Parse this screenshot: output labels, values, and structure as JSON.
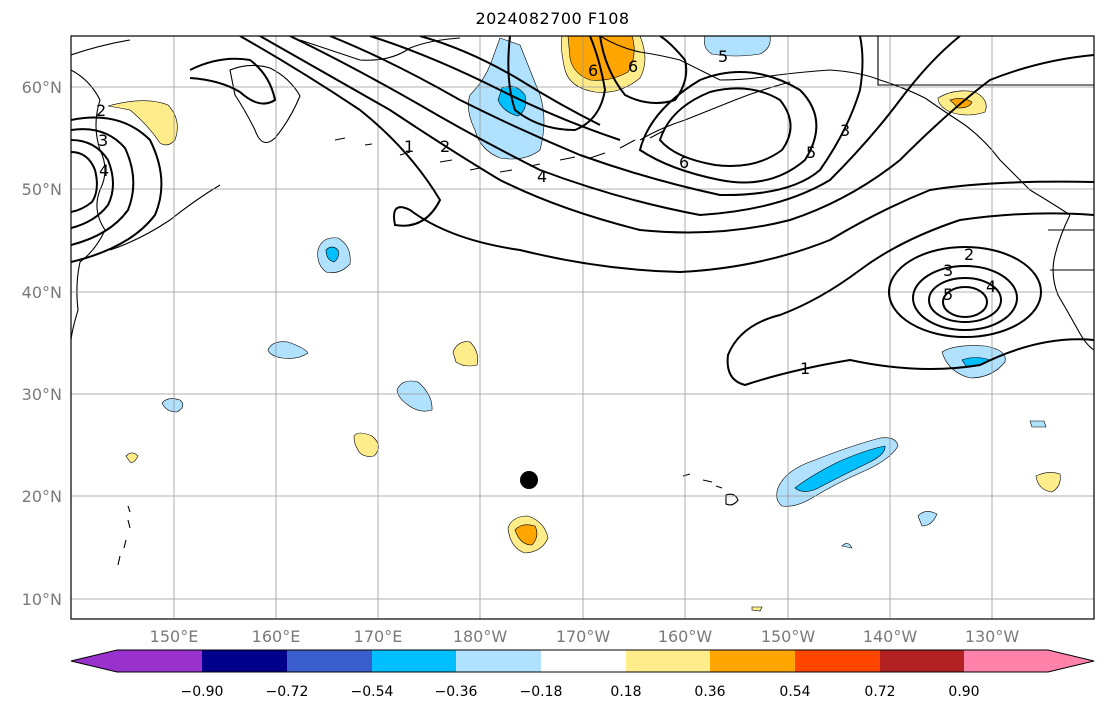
{
  "title": "2024082700 F108",
  "lat_labels": [
    "60°N",
    "50°N",
    "40°N",
    "30°N",
    "20°N",
    "10°N"
  ],
  "lon_labels": [
    "150°E",
    "160°E",
    "170°E",
    "180°W",
    "170°W",
    "160°W",
    "150°W",
    "140°W",
    "130°W"
  ],
  "colorbar": {
    "ticks": [
      "−0.90",
      "−0.72",
      "−0.54",
      "−0.36",
      "−0.18",
      "0.18",
      "0.36",
      "0.54",
      "0.72",
      "0.90"
    ],
    "colors": [
      "#9932cc",
      "#00008b",
      "#3a5fcd",
      "#00bfff",
      "#b0e2ff",
      "#ffffff",
      "#ffec8b",
      "#ffa500",
      "#ff4500",
      "#b22222",
      "#ff82ab"
    ]
  },
  "contour_labels": [
    "2",
    "3",
    "4",
    "1",
    "2",
    "4",
    "6",
    "5",
    "6",
    "3",
    "5",
    "6",
    "2",
    "3",
    "4",
    "5",
    "1"
  ],
  "marker": "storm-center"
}
